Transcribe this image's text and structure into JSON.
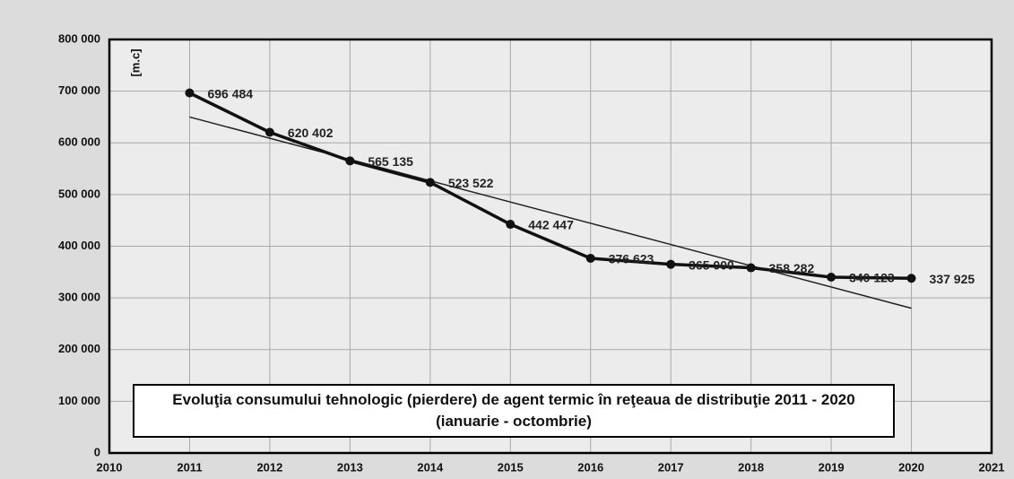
{
  "chart_data": {
    "type": "line",
    "title": "Evoluţia consumului tehnologic (pierdere)  de agent termic în reţeaua de distribuţie 2011 - 2020 (ianuarie - octombrie)",
    "y_label": "[m.c]",
    "x": [
      2011,
      2012,
      2013,
      2014,
      2015,
      2016,
      2017,
      2018,
      2019,
      2020
    ],
    "series": [
      {
        "color": "#111111",
        "values": [
          696484,
          620402,
          565135,
          523522,
          442447,
          376623,
          365000,
          358282,
          340123,
          337925
        ],
        "value_labels": [
          "696 484",
          "620 402",
          "565 135",
          "523 522",
          "442 447",
          "376 623",
          "365 000",
          "358 282",
          "340 123",
          "337 925"
        ]
      }
    ],
    "trend": {
      "color": "#222222",
      "x": [
        2011,
        2020
      ],
      "values": [
        650000,
        280000
      ]
    },
    "xlim": [
      2010,
      2021
    ],
    "xticks": [
      2010,
      2011,
      2012,
      2013,
      2014,
      2015,
      2016,
      2017,
      2018,
      2019,
      2020,
      2021
    ],
    "ylim": [
      0,
      800000
    ],
    "yticks": [
      0,
      {
        "value": 100000,
        "label": "100 000"
      },
      {
        "value": 200000,
        "label": "200 000"
      },
      {
        "value": 300000,
        "label": "300 000"
      },
      {
        "value": 400000,
        "label": "400 000"
      },
      {
        "value": 500000,
        "label": "500 000"
      },
      {
        "value": 600000,
        "label": "600 000"
      },
      {
        "value": 700000,
        "label": "700 000"
      },
      {
        "value": 800000,
        "label": "800 000"
      }
    ],
    "grid": true
  }
}
